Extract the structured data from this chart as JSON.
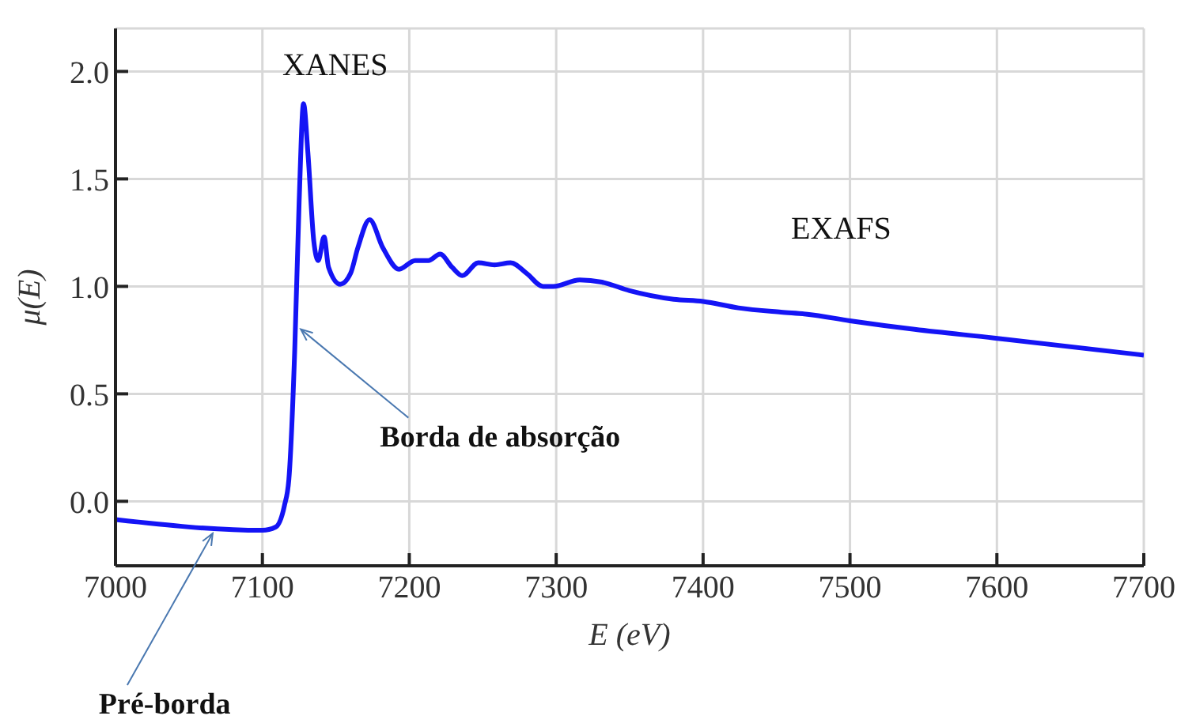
{
  "chart_data": {
    "type": "line",
    "xlabel": "E (eV)",
    "ylabel": "μ(E)",
    "x": [
      7000,
      7100,
      7109,
      7115,
      7118,
      7122,
      7125,
      7128,
      7131,
      7135,
      7138,
      7142,
      7145,
      7153,
      7160,
      7165,
      7173,
      7182,
      7193,
      7204,
      7213,
      7221,
      7229,
      7236,
      7247,
      7258,
      7269,
      7280,
      7291,
      7298,
      7316,
      7331,
      7350,
      7380,
      7400,
      7424,
      7453,
      7471,
      7500,
      7544,
      7598,
      7700
    ],
    "series": [
      {
        "color": "#1414f5",
        "values": [
          -0.085,
          -0.135,
          -0.12,
          -0.02,
          0.1,
          0.7,
          1.39,
          1.85,
          1.62,
          1.21,
          1.12,
          1.23,
          1.09,
          1.01,
          1.06,
          1.18,
          1.31,
          1.18,
          1.08,
          1.12,
          1.12,
          1.15,
          1.09,
          1.05,
          1.11,
          1.1,
          1.11,
          1.06,
          1.0,
          1.0,
          1.03,
          1.02,
          0.98,
          0.94,
          0.93,
          0.9,
          0.88,
          0.87,
          0.84,
          0.8,
          0.76,
          0.68
        ]
      }
    ],
    "xlim": [
      7000,
      7700
    ],
    "xticks": [
      7000,
      7100,
      7200,
      7300,
      7400,
      7500,
      7600,
      7700
    ],
    "ylim": [
      -0.3,
      2.2
    ],
    "yticks": [
      {
        "value": 0,
        "label": "0.0"
      },
      {
        "value": 0.5,
        "label": "0.5"
      },
      {
        "value": 1,
        "label": "1.0"
      },
      {
        "value": 1.5,
        "label": "1.5"
      },
      {
        "value": 2,
        "label": "2.0"
      }
    ],
    "grid": true,
    "marker": "none",
    "line_style": "solid",
    "annotations": [
      {
        "text": "XANES",
        "x": 7128,
        "y": 1.85
      },
      {
        "text": "Borda de absorção",
        "x": 7124,
        "y": 0.83
      },
      {
        "text": "EXAFS",
        "x": 7494,
        "y": 0.84
      },
      {
        "text": "Pré-borda",
        "x": 7064,
        "y": -0.12
      }
    ]
  }
}
